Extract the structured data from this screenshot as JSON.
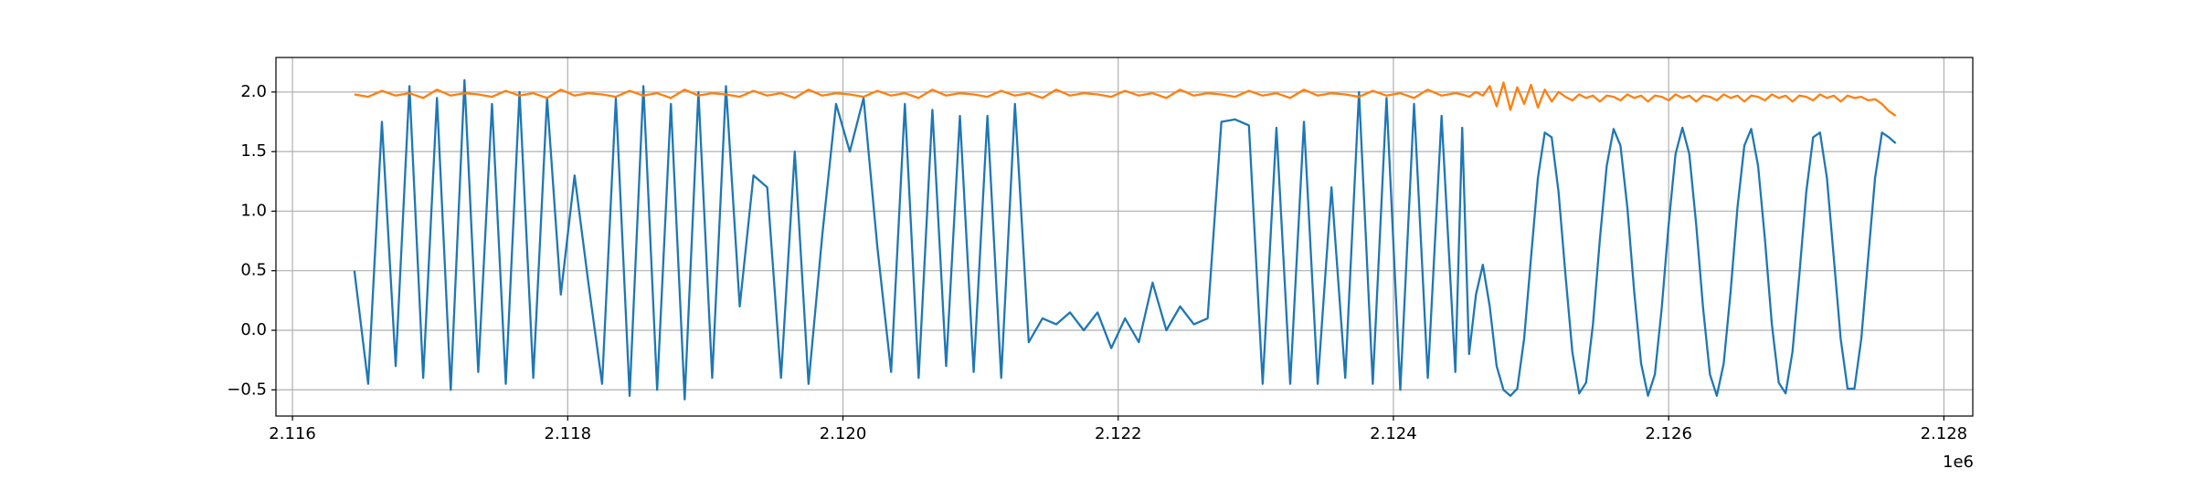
{
  "chart_data": {
    "type": "line",
    "x_offset_label": "1e6",
    "xlim": [
      2115880,
      2128210
    ],
    "ylim": [
      -0.72,
      2.29
    ],
    "xticks": [
      {
        "value": 2116000,
        "label": "2.116"
      },
      {
        "value": 2118000,
        "label": "2.118"
      },
      {
        "value": 2120000,
        "label": "2.120"
      },
      {
        "value": 2122000,
        "label": "2.122"
      },
      {
        "value": 2124000,
        "label": "2.124"
      },
      {
        "value": 2126000,
        "label": "2.126"
      },
      {
        "value": 2128000,
        "label": "2.128"
      }
    ],
    "yticks": [
      {
        "value": -0.5,
        "label": "−0.5"
      },
      {
        "value": 0,
        "label": "0.0"
      },
      0.5,
      {
        "value": 1,
        "label": "1.0"
      },
      1.5,
      {
        "value": 2,
        "label": "2.0"
      }
    ],
    "grid": true,
    "x": [
      2116450,
      2116550,
      2116650,
      2116750,
      2116850,
      2116950,
      2117050,
      2117150,
      2117250,
      2117350,
      2117450,
      2117550,
      2117650,
      2117750,
      2117850,
      2117950,
      2118050,
      2118150,
      2118250,
      2118350,
      2118450,
      2118550,
      2118650,
      2118750,
      2118850,
      2118950,
      2119050,
      2119150,
      2119250,
      2119350,
      2119450,
      2119550,
      2119650,
      2119750,
      2119850,
      2119950,
      2120050,
      2120150,
      2120250,
      2120350,
      2120450,
      2120550,
      2120650,
      2120750,
      2120850,
      2120950,
      2121050,
      2121150,
      2121250,
      2121350,
      2121450,
      2121550,
      2121650,
      2121750,
      2121850,
      2121950,
      2122050,
      2122150,
      2122250,
      2122350,
      2122450,
      2122550,
      2122650,
      2122750,
      2122850,
      2122950,
      2123050,
      2123150,
      2123250,
      2123350,
      2123450,
      2123550,
      2123650,
      2123750,
      2123850,
      2123950,
      2124050,
      2124150,
      2124250,
      2124350,
      2124450,
      2124500,
      2124550,
      2124600,
      2124650,
      2124700,
      2124750,
      2124800,
      2124850,
      2124900,
      2124950,
      2125000,
      2125050,
      2125100,
      2125150,
      2125200,
      2125250,
      2125300,
      2125350,
      2125400,
      2125450,
      2125500,
      2125550,
      2125600,
      2125650,
      2125700,
      2125750,
      2125800,
      2125850,
      2125900,
      2125950,
      2126000,
      2126050,
      2126100,
      2126150,
      2126200,
      2126250,
      2126300,
      2126350,
      2126400,
      2126450,
      2126500,
      2126550,
      2126600,
      2126650,
      2126700,
      2126750,
      2126800,
      2126850,
      2126900,
      2126950,
      2127000,
      2127050,
      2127100,
      2127150,
      2127200,
      2127250,
      2127300,
      2127350,
      2127400,
      2127450,
      2127500,
      2127550,
      2127600,
      2127650
    ],
    "series": [
      {
        "color": "#1f77b4",
        "values": [
          0.5,
          -0.45,
          1.75,
          -0.3,
          2.05,
          -0.4,
          1.95,
          -0.5,
          2.1,
          -0.35,
          1.9,
          -0.45,
          2.0,
          -0.4,
          1.95,
          0.3,
          1.3,
          0.4,
          -0.45,
          1.95,
          -0.55,
          2.05,
          -0.5,
          1.9,
          -0.58,
          2.0,
          -0.4,
          2.05,
          0.2,
          1.3,
          1.2,
          -0.4,
          1.5,
          -0.45,
          0.8,
          1.9,
          1.5,
          1.95,
          0.7,
          -0.35,
          1.9,
          -0.4,
          1.85,
          -0.3,
          1.8,
          -0.35,
          1.8,
          -0.4,
          1.9,
          -0.1,
          0.1,
          0.05,
          0.15,
          0.0,
          0.15,
          -0.15,
          0.1,
          -0.1,
          0.4,
          0.0,
          0.2,
          0.05,
          0.1,
          1.75,
          1.77,
          1.72,
          -0.45,
          1.7,
          -0.45,
          1.75,
          -0.45,
          1.2,
          -0.4,
          2.0,
          -0.45,
          1.95,
          -0.5,
          1.9,
          -0.4,
          1.8,
          -0.35,
          1.7,
          -0.2,
          0.3,
          0.55,
          0.2,
          -0.3,
          -0.5,
          -0.55,
          -0.49,
          -0.07,
          0.61,
          1.28,
          1.66,
          1.62,
          1.16,
          0.47,
          -0.18,
          -0.53,
          -0.44,
          0.05,
          0.76,
          1.38,
          1.69,
          1.55,
          1.03,
          0.32,
          -0.28,
          -0.55,
          -0.37,
          0.19,
          0.89,
          1.48,
          1.7,
          1.48,
          0.89,
          0.19,
          -0.37,
          -0.55,
          -0.28,
          0.32,
          1.03,
          1.55,
          1.69,
          1.38,
          0.76,
          0.05,
          -0.44,
          -0.53,
          -0.18,
          0.47,
          1.16,
          1.62,
          1.66,
          1.28,
          0.61,
          -0.07,
          -0.49,
          -0.49,
          -0.07,
          0.61,
          1.28,
          1.66,
          1.62,
          1.57
        ]
      },
      {
        "color": "#ff7f0e",
        "values": [
          1.98,
          1.96,
          2.01,
          1.97,
          1.99,
          1.95,
          2.02,
          1.97,
          1.99,
          1.98,
          1.96,
          2.01,
          1.97,
          1.99,
          1.95,
          2.02,
          1.97,
          1.99,
          1.98,
          1.96,
          2.01,
          1.97,
          1.99,
          1.95,
          2.02,
          1.97,
          1.99,
          1.98,
          1.96,
          2.01,
          1.97,
          1.99,
          1.95,
          2.02,
          1.97,
          1.99,
          1.98,
          1.96,
          2.01,
          1.97,
          1.99,
          1.95,
          2.02,
          1.97,
          1.99,
          1.98,
          1.96,
          2.01,
          1.97,
          1.99,
          1.95,
          2.02,
          1.97,
          1.99,
          1.98,
          1.96,
          2.01,
          1.97,
          1.99,
          1.95,
          2.02,
          1.97,
          1.99,
          1.98,
          1.96,
          2.01,
          1.97,
          1.99,
          1.95,
          2.02,
          1.97,
          1.99,
          1.98,
          1.96,
          2.01,
          1.97,
          1.99,
          1.95,
          2.02,
          1.97,
          1.99,
          1.98,
          1.96,
          2.0,
          1.97,
          2.05,
          1.88,
          2.08,
          1.85,
          2.04,
          1.9,
          2.06,
          1.87,
          2.02,
          1.92,
          2.0,
          1.96,
          1.93,
          1.98,
          1.95,
          1.97,
          1.92,
          1.97,
          1.96,
          1.93,
          1.98,
          1.95,
          1.97,
          1.92,
          1.97,
          1.96,
          1.93,
          1.98,
          1.95,
          1.97,
          1.92,
          1.97,
          1.96,
          1.93,
          1.98,
          1.95,
          1.97,
          1.92,
          1.97,
          1.96,
          1.93,
          1.98,
          1.95,
          1.97,
          1.92,
          1.97,
          1.96,
          1.93,
          1.98,
          1.95,
          1.97,
          1.92,
          1.97,
          1.95,
          1.96,
          1.93,
          1.94,
          1.9,
          1.84,
          1.8
        ]
      }
    ]
  }
}
